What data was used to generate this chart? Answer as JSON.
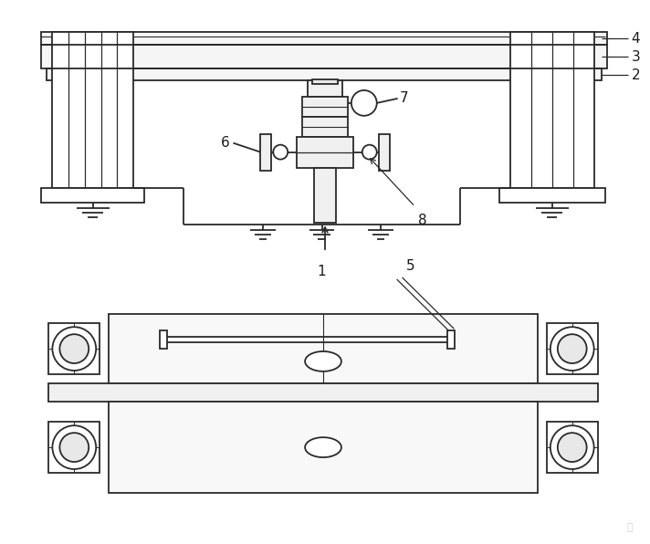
{
  "bg_color": "#ffffff",
  "line_color": "#2a2a2a",
  "lw": 1.3,
  "fig_width": 7.12,
  "fig_height": 5.96,
  "dpi": 100
}
